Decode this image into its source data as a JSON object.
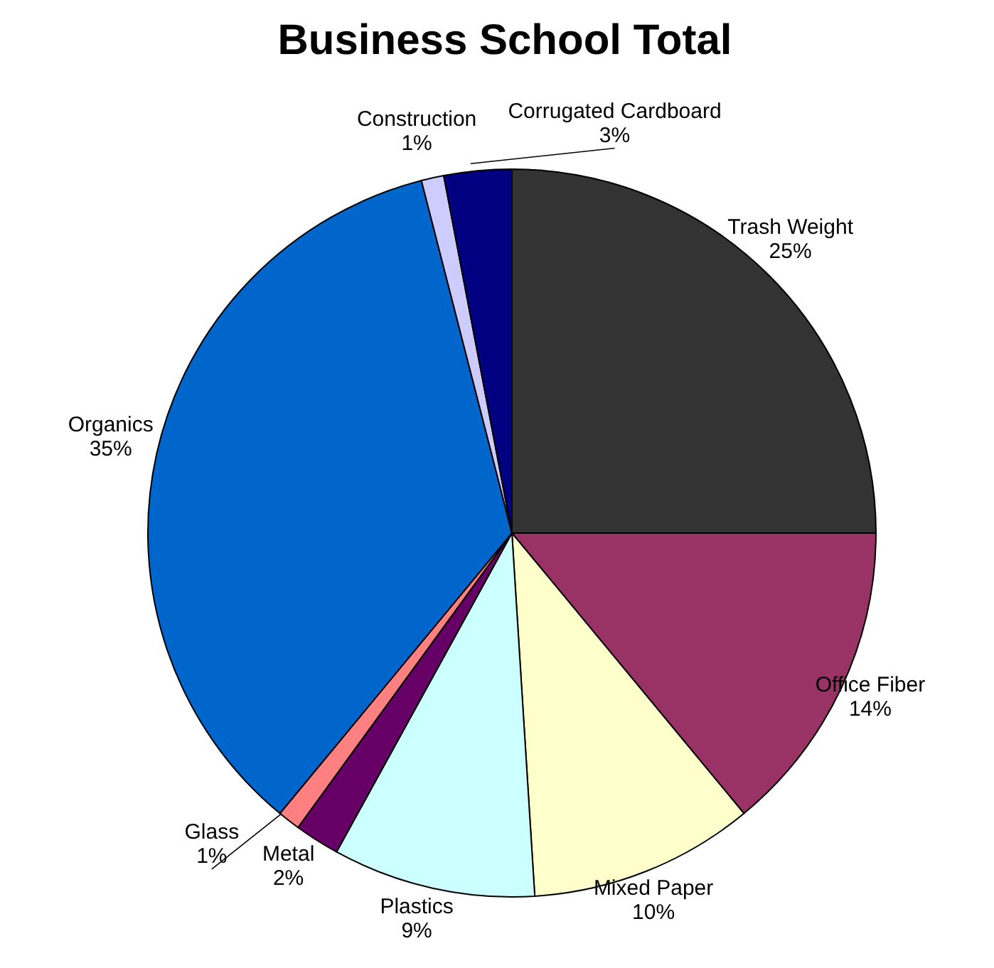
{
  "chart_data": {
    "type": "pie",
    "title": "Business School Total",
    "categories": [
      "Trash Weight",
      "Office Fiber",
      "Mixed Paper",
      "Plastics",
      "Metal",
      "Glass",
      "Organics",
      "Construction",
      "Corrugated Cardboard"
    ],
    "values": [
      25,
      14,
      10,
      9,
      2,
      1,
      35,
      1,
      3
    ],
    "value_labels": [
      "25%",
      "14%",
      "10%",
      "9%",
      "2%",
      "1%",
      "35%",
      "1%",
      "3%"
    ],
    "colors": [
      "#333333",
      "#993366",
      "#ffffcc",
      "#ccffff",
      "#660066",
      "#ff8080",
      "#0066cc",
      "#ccccff",
      "#000080"
    ],
    "legend": false
  }
}
